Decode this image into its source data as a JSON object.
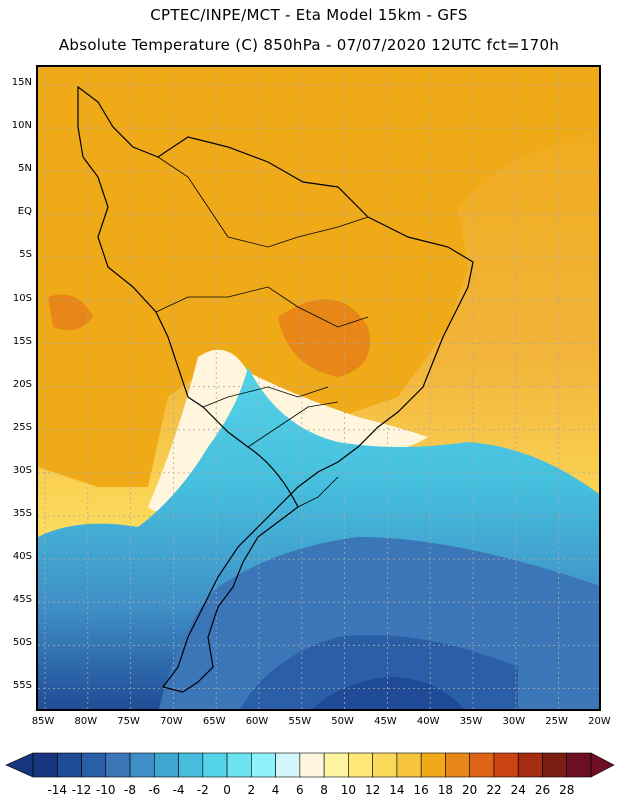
{
  "header": {
    "title_line1": "CPTEC/INPE/MCT -  Eta Model 15km - GFS",
    "title_line2": "Absolute Temperature (C) 850hPa - 07/07/2020 12UTC fct=170h"
  },
  "map": {
    "lat_labels": [
      "15N",
      "10N",
      "5N",
      "EQ",
      "5S",
      "10S",
      "15S",
      "20S",
      "25S",
      "30S",
      "35S",
      "40S",
      "45S",
      "50S",
      "55S"
    ],
    "lon_labels": [
      "85W",
      "80W",
      "75W",
      "70W",
      "65W",
      "60W",
      "55W",
      "50W",
      "45W",
      "40W",
      "35W",
      "30W",
      "25W",
      "20W"
    ]
  },
  "colorbar": {
    "levels": [
      "-14",
      "-12",
      "-10",
      "-8",
      "-6",
      "-4",
      "-2",
      "0",
      "2",
      "4",
      "6",
      "8",
      "10",
      "12",
      "14",
      "16",
      "18",
      "20",
      "22",
      "24",
      "26",
      "28"
    ],
    "colors": [
      "#18357f",
      "#1f4a95",
      "#2a5fa8",
      "#3a76b8",
      "#3f8ec6",
      "#3fa6d2",
      "#45bedd",
      "#55d3e8",
      "#6de3f0",
      "#8ef3fb",
      "#d2f6fb",
      "#fff6dd",
      "#fff4a0",
      "#ffe875",
      "#fbd95a",
      "#f6c43f",
      "#f0aa17",
      "#e88717",
      "#dd6316",
      "#c94313",
      "#a42c10",
      "#7a1d12",
      "#6d0f24"
    ],
    "under_color": "#18357f",
    "over_color": "#6d0f24"
  }
}
